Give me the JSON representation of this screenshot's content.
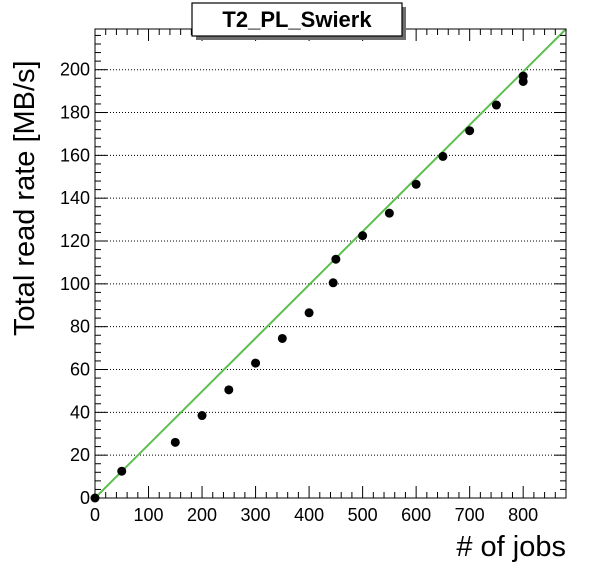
{
  "chart_data": {
    "type": "scatter",
    "title": "T2_PL_Swierk",
    "xlabel": "# of jobs",
    "ylabel": "Total read rate [MB/s]",
    "xlim": [
      0,
      880
    ],
    "ylim": [
      0,
      219
    ],
    "x_ticks": [
      0,
      100,
      200,
      300,
      400,
      500,
      600,
      700,
      800
    ],
    "y_ticks": [
      0,
      20,
      40,
      60,
      80,
      100,
      120,
      140,
      160,
      180,
      200
    ],
    "grid": "horizontal dotted",
    "points": [
      {
        "x": 0,
        "y": 0
      },
      {
        "x": 50,
        "y": 12.5
      },
      {
        "x": 150,
        "y": 26
      },
      {
        "x": 200,
        "y": 38.5
      },
      {
        "x": 250,
        "y": 50.5
      },
      {
        "x": 300,
        "y": 63
      },
      {
        "x": 350,
        "y": 74.5
      },
      {
        "x": 400,
        "y": 86.5
      },
      {
        "x": 445,
        "y": 100.5
      },
      {
        "x": 450,
        "y": 111.5
      },
      {
        "x": 500,
        "y": 122.5
      },
      {
        "x": 550,
        "y": 133
      },
      {
        "x": 600,
        "y": 146.5
      },
      {
        "x": 650,
        "y": 159.5
      },
      {
        "x": 700,
        "y": 171.5
      },
      {
        "x": 750,
        "y": 183.5
      },
      {
        "x": 800,
        "y": 194.5
      },
      {
        "x": 800,
        "y": 197
      }
    ],
    "fit_line": {
      "x": [
        0,
        880
      ],
      "y": [
        0,
        219
      ],
      "color": "#5cbf4f"
    },
    "marker_color": "#000000"
  }
}
